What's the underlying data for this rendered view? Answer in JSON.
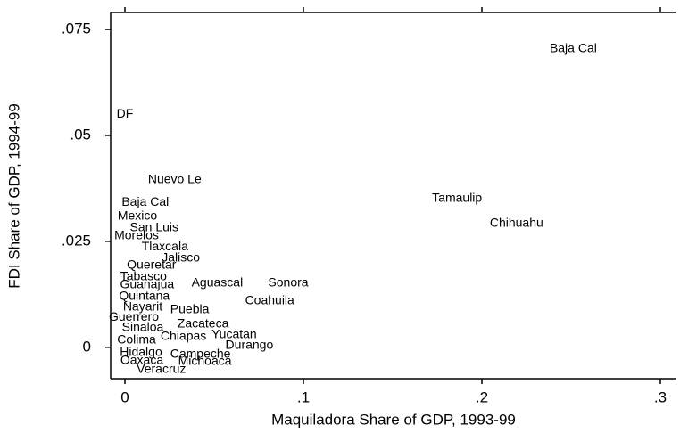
{
  "chart_data": {
    "type": "scatter",
    "x_label": "Maquiladora Share of GDP, 1993-99",
    "y_label": "FDI Share of GDP, 1994-99",
    "labels": [
      "Baja Cal",
      "DF",
      "Nuevo Le",
      "Tamaulip",
      "Chihuahu",
      "Baja Cal",
      "Mexico",
      "San Luis",
      "Morelos",
      "Tlaxcala",
      "Jalisco",
      "Queretar",
      "Tabasco",
      "Guanajua",
      "Aguascal",
      "Sonora",
      "Quintana",
      "Coahuila",
      "Nayarit",
      "Puebla",
      "Guerrero",
      "Zacateca",
      "Sinaloa",
      "Yucatan",
      "Colima",
      "Chiapas",
      "Durango",
      "Hidalgo",
      "Campeche",
      "Oaxaca",
      "Michoaca",
      "Veracruz"
    ],
    "x": [
      0.2512,
      0.0,
      0.0279,
      0.1861,
      0.2194,
      0.0114,
      0.007,
      0.0164,
      0.0065,
      0.0224,
      0.0313,
      0.0149,
      0.0104,
      0.0124,
      0.0517,
      0.0915,
      0.0109,
      0.0811,
      0.01,
      0.0363,
      0.005,
      0.0438,
      0.01,
      0.0612,
      0.0065,
      0.0328,
      0.0697,
      0.009,
      0.0423,
      0.0095,
      0.0448,
      0.0204
    ],
    "y": [
      0.0704,
      0.055,
      0.0395,
      0.0351,
      0.0292,
      0.0342,
      0.0309,
      0.0282,
      0.0263,
      0.0237,
      0.021,
      0.0193,
      0.0166,
      0.0147,
      0.0151,
      0.0151,
      0.012,
      0.0109,
      0.0095,
      0.0088,
      0.007,
      0.0055,
      0.0046,
      0.0029,
      0.0017,
      0.0025,
      0.0004,
      -0.0013,
      -0.0017,
      -0.0032,
      -0.0034,
      -0.0053
    ],
    "xlim": [
      -0.008,
      0.3085
    ],
    "ylim": [
      -0.0074,
      0.079
    ],
    "xticks": [
      0,
      {
        "value": 0.1,
        "label": ".1"
      },
      {
        "value": 0.2,
        "label": ".2"
      },
      {
        "value": 0.3,
        "label": ".3"
      }
    ],
    "yticks": [
      0,
      {
        "value": 0.025,
        "label": ".025"
      },
      {
        "value": 0.05,
        "label": ".05"
      },
      {
        "value": 0.075,
        "label": ".075"
      }
    ],
    "color": "#000000"
  }
}
